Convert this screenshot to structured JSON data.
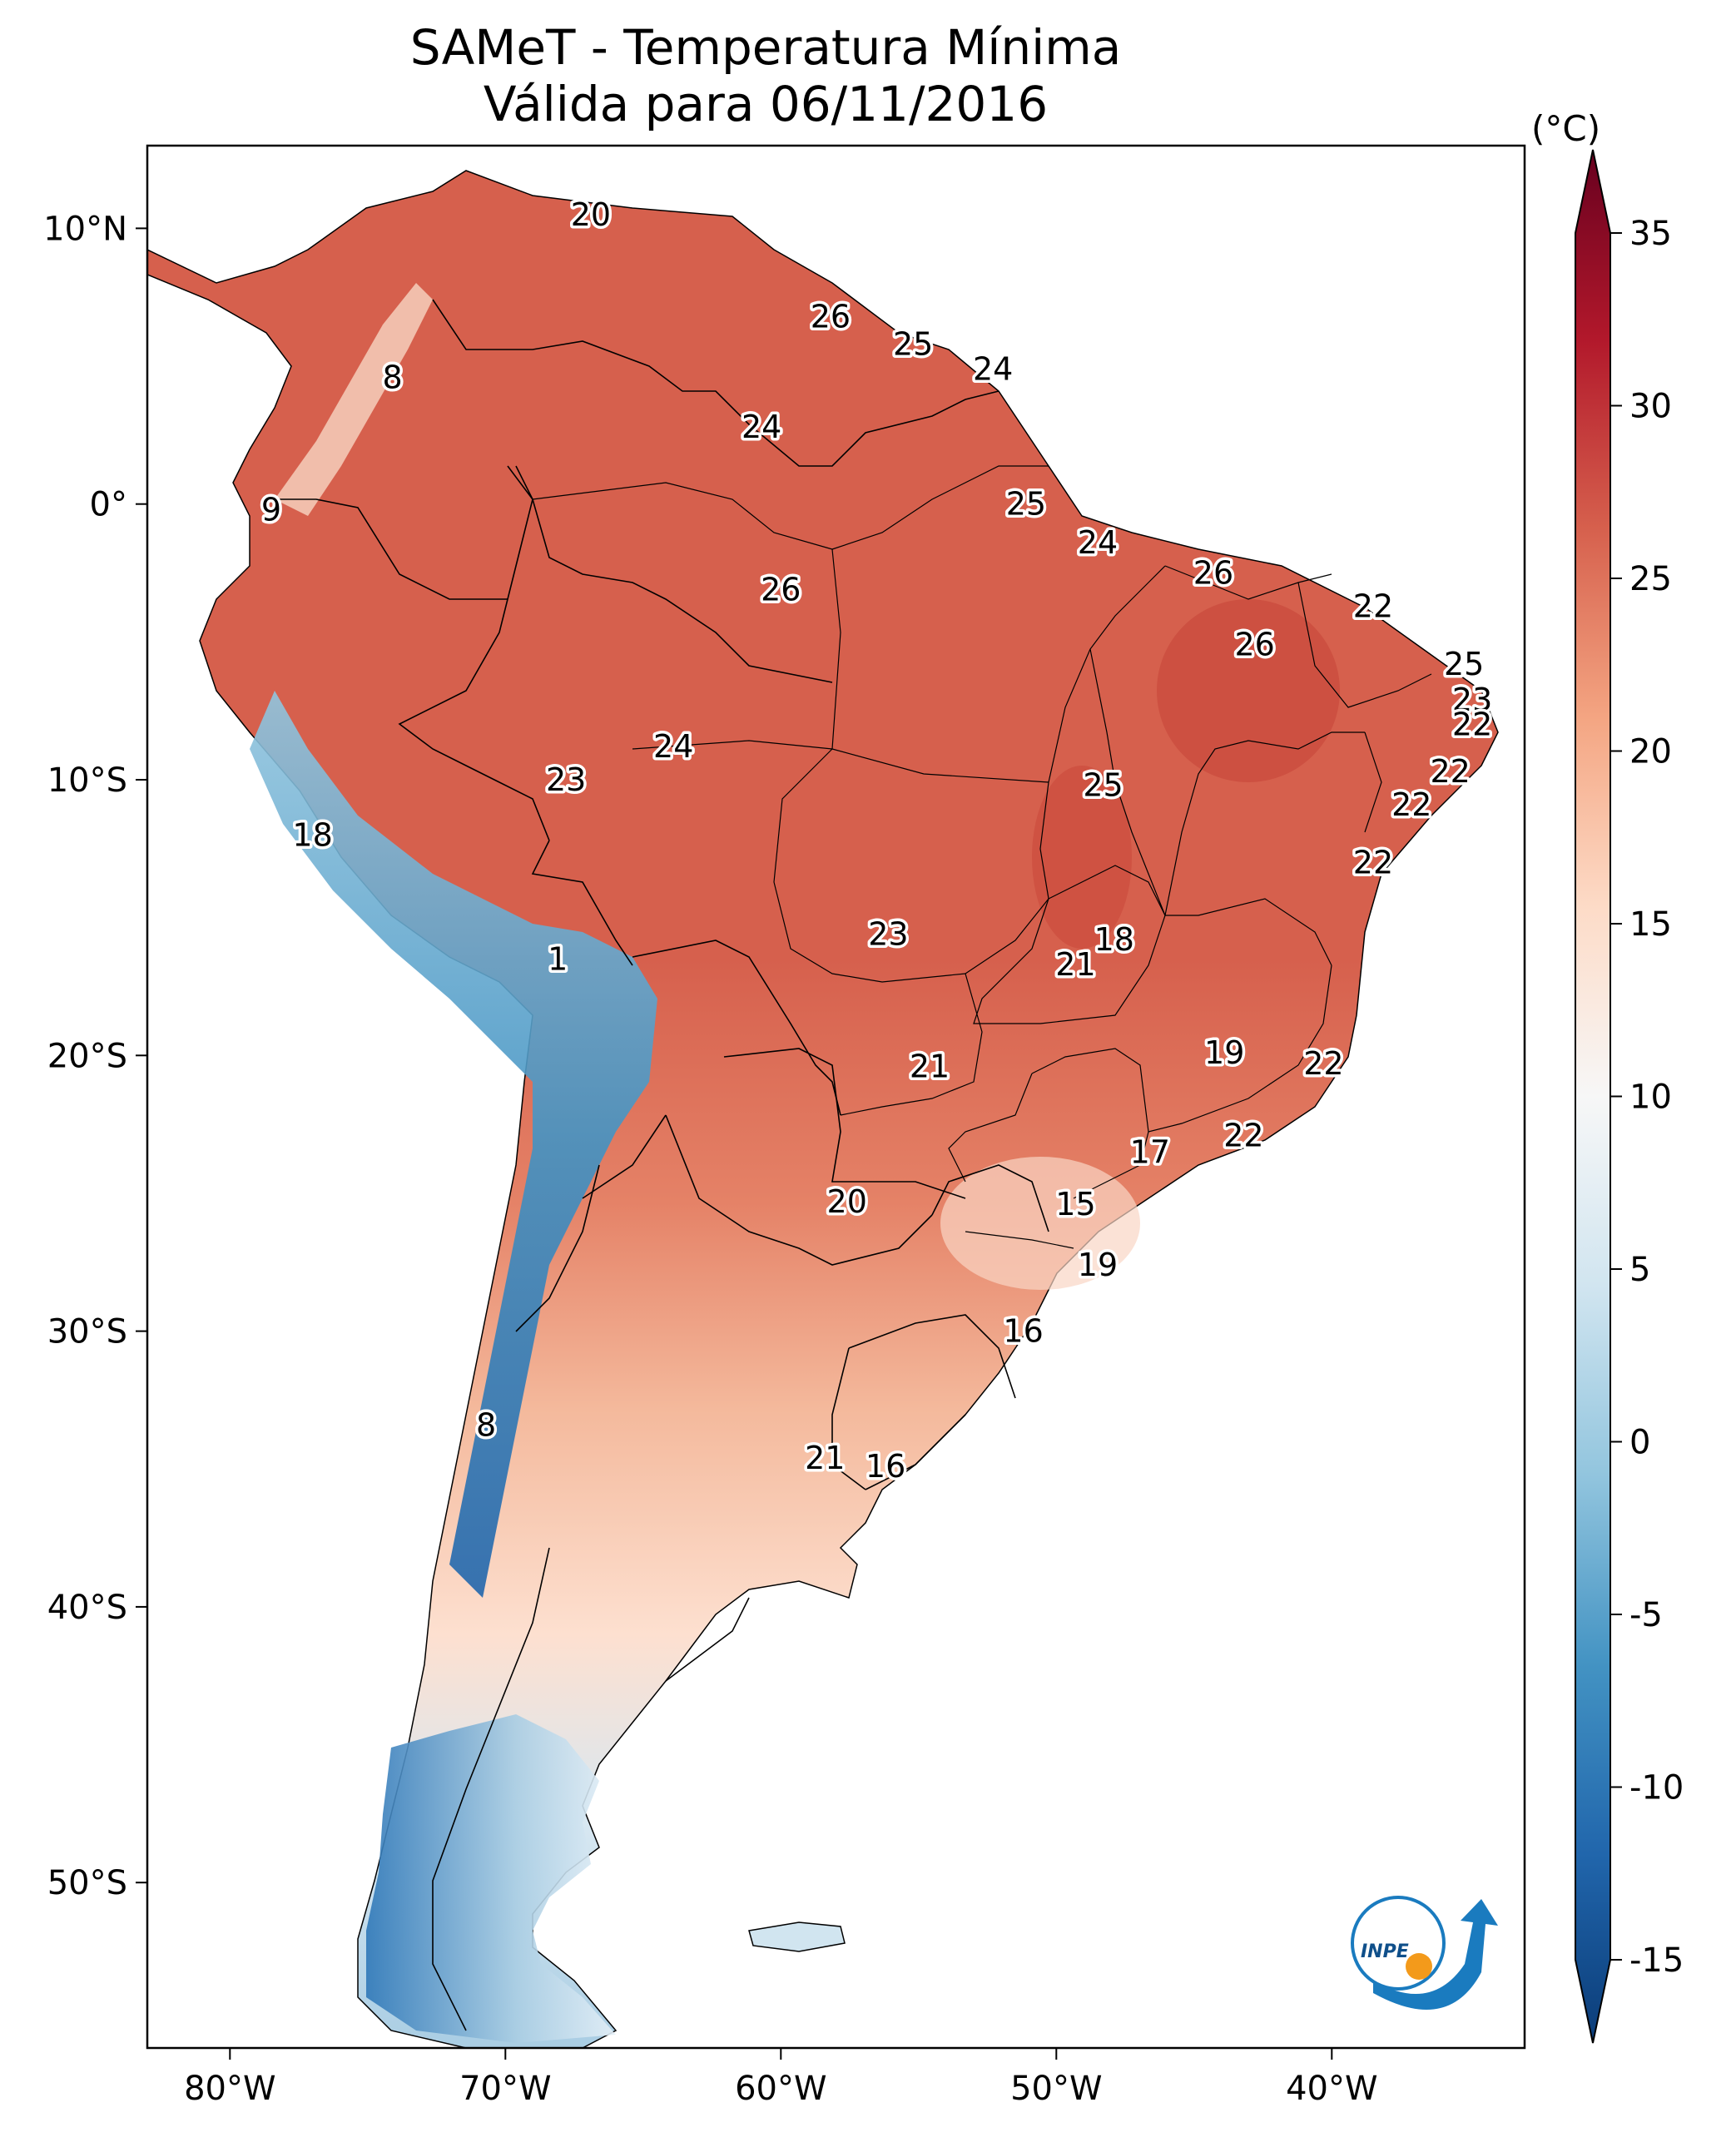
{
  "title": {
    "line1": "SAMeT - Temperatura Mínima",
    "line2": "Válida para 06/11/2016"
  },
  "colorbar": {
    "unit": "(°C)",
    "ticks": [
      "35",
      "30",
      "25",
      "20",
      "15",
      "10",
      "5",
      "0",
      "-5",
      "-10",
      "-15"
    ],
    "min": -15,
    "max": 35,
    "colors": [
      "#0b3c78",
      "#2166ac",
      "#4393c3",
      "#92c5de",
      "#d1e5f0",
      "#f7f7f7",
      "#fddbc7",
      "#f4a582",
      "#d6604d",
      "#b2182b",
      "#67001f"
    ]
  },
  "axes": {
    "lon_labels": [
      "80°W",
      "70°W",
      "60°W",
      "50°W",
      "40°W"
    ],
    "lat_labels": [
      "10°N",
      "0°",
      "10°S",
      "20°S",
      "30°S",
      "40°S",
      "50°S"
    ]
  },
  "city_values": [
    {
      "value": "20",
      "lon": -66.9,
      "lat": 10.5
    },
    {
      "value": "8",
      "lon": -74.1,
      "lat": 4.6
    },
    {
      "value": "9",
      "lon": -78.5,
      "lat": -0.2
    },
    {
      "value": "26",
      "lon": -58.2,
      "lat": 6.8
    },
    {
      "value": "25",
      "lon": -55.2,
      "lat": 5.8
    },
    {
      "value": "24",
      "lon": -52.3,
      "lat": 4.9
    },
    {
      "value": "24",
      "lon": -60.7,
      "lat": 2.8
    },
    {
      "value": "25",
      "lon": -51.1,
      "lat": 0.0
    },
    {
      "value": "24",
      "lon": -48.5,
      "lat": -1.4
    },
    {
      "value": "26",
      "lon": -60.0,
      "lat": -3.1
    },
    {
      "value": "26",
      "lon": -44.3,
      "lat": -2.5
    },
    {
      "value": "22",
      "lon": -38.5,
      "lat": -3.7
    },
    {
      "value": "26",
      "lon": -42.8,
      "lat": -5.1
    },
    {
      "value": "25",
      "lon": -35.2,
      "lat": -5.8
    },
    {
      "value": "23",
      "lon": -34.9,
      "lat": -7.1
    },
    {
      "value": "22",
      "lon": -34.9,
      "lat": -8.0
    },
    {
      "value": "24",
      "lon": -63.9,
      "lat": -8.8
    },
    {
      "value": "23",
      "lon": -67.8,
      "lat": -10.0
    },
    {
      "value": "25",
      "lon": -48.3,
      "lat": -10.2
    },
    {
      "value": "22",
      "lon": -35.7,
      "lat": -9.7
    },
    {
      "value": "22",
      "lon": -37.1,
      "lat": -10.9
    },
    {
      "value": "18",
      "lon": -77.0,
      "lat": -12.0
    },
    {
      "value": "22",
      "lon": -38.5,
      "lat": -13.0
    },
    {
      "value": "23",
      "lon": -56.1,
      "lat": -15.6
    },
    {
      "value": "18",
      "lon": -47.9,
      "lat": -15.8
    },
    {
      "value": "21",
      "lon": -49.3,
      "lat": -16.7
    },
    {
      "value": "1",
      "lon": -68.1,
      "lat": -16.5
    },
    {
      "value": "19",
      "lon": -43.9,
      "lat": -19.9
    },
    {
      "value": "22",
      "lon": -40.3,
      "lat": -20.3
    },
    {
      "value": "21",
      "lon": -54.6,
      "lat": -20.4
    },
    {
      "value": "22",
      "lon": -43.2,
      "lat": -22.9
    },
    {
      "value": "17",
      "lon": -46.6,
      "lat": -23.5
    },
    {
      "value": "20",
      "lon": -57.6,
      "lat": -25.3
    },
    {
      "value": "15",
      "lon": -49.3,
      "lat": -25.4
    },
    {
      "value": "19",
      "lon": -48.5,
      "lat": -27.6
    },
    {
      "value": "16",
      "lon": -51.2,
      "lat": -30.0
    },
    {
      "value": "8",
      "lon": -70.7,
      "lat": -33.4
    },
    {
      "value": "21",
      "lon": -58.4,
      "lat": -34.6
    },
    {
      "value": "16",
      "lon": -56.2,
      "lat": -34.9
    }
  ],
  "logo": {
    "text": "INPE"
  }
}
